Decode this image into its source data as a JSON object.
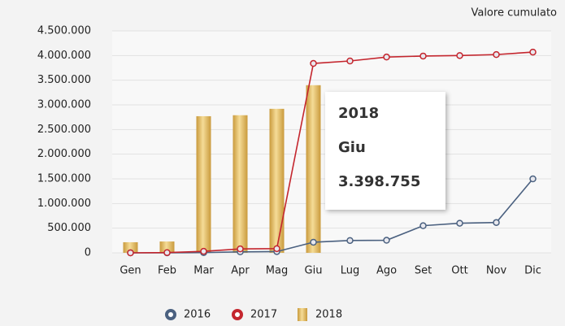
{
  "chart_data": {
    "type": "bar-line",
    "title": "Valore cumulato",
    "categories": [
      "Gen",
      "Feb",
      "Mar",
      "Apr",
      "Mag",
      "Giu",
      "Lug",
      "Ago",
      "Set",
      "Ott",
      "Nov",
      "Dic"
    ],
    "series": [
      {
        "name": "2016",
        "type": "line",
        "color": "#4b6180",
        "values": [
          0,
          0,
          5000,
          20000,
          25000,
          215000,
          250000,
          255000,
          550000,
          600000,
          615000,
          1500000
        ]
      },
      {
        "name": "2017",
        "type": "line",
        "color": "#c4262e",
        "values": [
          0,
          5000,
          30000,
          80000,
          85000,
          3840000,
          3890000,
          3970000,
          3990000,
          4000000,
          4020000,
          4070000
        ]
      },
      {
        "name": "2018",
        "type": "bar",
        "color": "#e3b95c",
        "values": [
          215000,
          230000,
          2770000,
          2790000,
          2920000,
          3398755,
          null,
          null,
          null,
          null,
          null,
          null
        ],
        "value_labels": [
          null,
          null,
          null,
          null,
          null,
          "3.398.755",
          null,
          null,
          null,
          null,
          null,
          null
        ]
      }
    ],
    "tooltip_index": 5,
    "ylim": [
      0,
      4500000
    ],
    "yticks": [
      0,
      {
        "value": 500000,
        "label": "500.000"
      },
      {
        "value": 1000000,
        "label": "1.000.000"
      },
      {
        "value": 1500000,
        "label": "1.500.000"
      },
      {
        "value": 2000000,
        "label": "2.000.000"
      },
      {
        "value": 2500000,
        "label": "2.500.000"
      },
      {
        "value": 3000000,
        "label": "3.000.000"
      },
      {
        "value": 3500000,
        "label": "3.500.000"
      },
      {
        "value": 4000000,
        "label": "4.000.000"
      },
      {
        "value": 4500000,
        "label": "4.500.000"
      }
    ],
    "grid": true
  }
}
